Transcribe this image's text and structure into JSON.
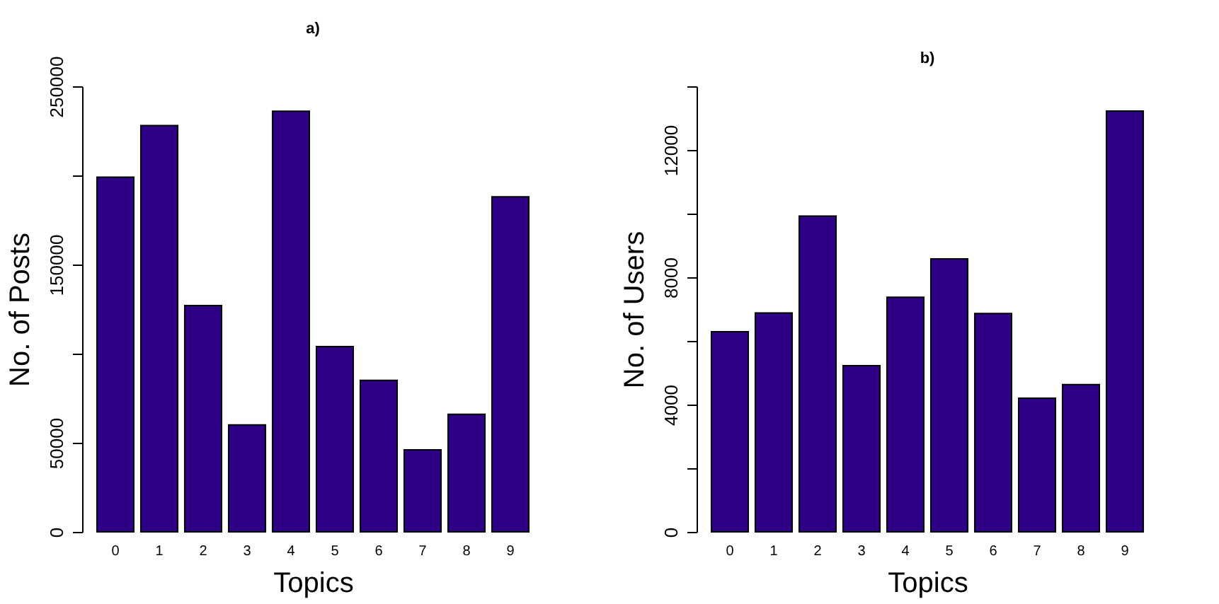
{
  "chart_data": [
    {
      "type": "bar",
      "title": "a)",
      "xlabel": "Topics",
      "ylabel": "No. of Posts",
      "categories": [
        "0",
        "1",
        "2",
        "3",
        "4",
        "5",
        "6",
        "7",
        "8",
        "9"
      ],
      "series": [
        {
          "color": "#2e0085",
          "values": [
            199000,
            228000,
            127000,
            60000,
            236000,
            104000,
            85000,
            46000,
            66000,
            188000
          ]
        }
      ],
      "ylim": [
        0,
        250000
      ],
      "yticks": [
        0,
        50000,
        {
          "value": 100000,
          "label": null
        },
        150000,
        {
          "value": 200000,
          "label": null
        },
        250000
      ],
      "grid": false,
      "legend": false
    },
    {
      "type": "bar",
      "title": "b)",
      "xlabel": "Topics",
      "ylabel": "No. of Users",
      "categories": [
        "0",
        "1",
        "2",
        "3",
        "4",
        "5",
        "6",
        "7",
        "8",
        "9"
      ],
      "series": [
        {
          "color": "#2e0085",
          "values": [
            6290,
            6880,
            9920,
            5220,
            7370,
            8580,
            6860,
            4200,
            4630,
            13220
          ]
        }
      ],
      "ylim": [
        0,
        14000
      ],
      "yticks": [
        0,
        {
          "value": 2000,
          "label": null
        },
        4000,
        {
          "value": 6000,
          "label": null
        },
        8000,
        {
          "value": 10000,
          "label": null
        },
        12000,
        {
          "value": 14000,
          "label": null
        }
      ],
      "grid": false,
      "legend": false
    }
  ]
}
